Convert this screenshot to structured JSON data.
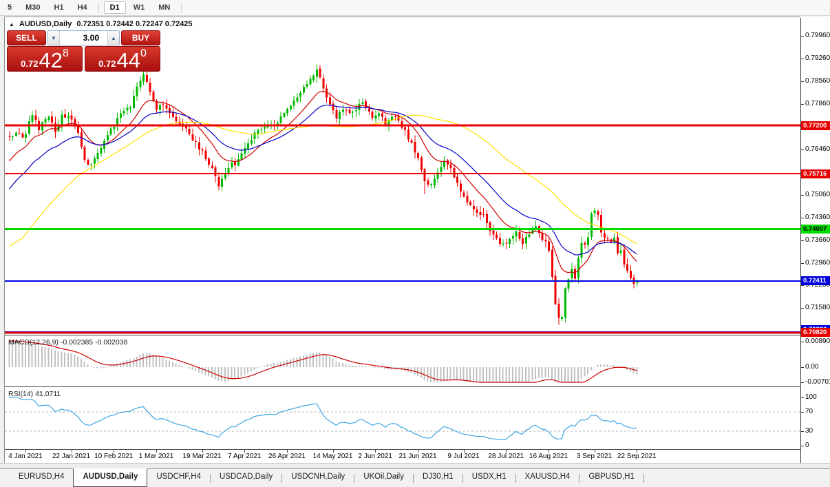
{
  "toolbar": {
    "items": [
      {
        "label": "5"
      },
      {
        "label": "M30"
      },
      {
        "label": "H1"
      },
      {
        "label": "H4"
      },
      {
        "sep": true
      },
      {
        "label": "D1",
        "active": true
      },
      {
        "label": "W1"
      },
      {
        "label": "MN"
      },
      {
        "sep": true
      }
    ]
  },
  "icons": {
    "panel_toggle": "▲",
    "triangle_up": "▲",
    "triangle_down": "▼"
  },
  "one_click": {
    "sell_label": "SELL",
    "buy_label": "BUY",
    "volume": "3.00",
    "sell": {
      "prefix": "0.72",
      "main": "42",
      "sup": "8"
    },
    "buy": {
      "prefix": "0.72",
      "main": "44",
      "sup": "0"
    }
  },
  "chart_data": {
    "type": "candlestick",
    "symbol": "AUDUSD",
    "timeframe": "Daily",
    "title": {
      "symbol": "AUDUSD,Daily",
      "ohlc": "0.72351 0.72442 0.72247 0.72425"
    },
    "last_bar": {
      "open": 0.72351,
      "high": 0.72442,
      "low": 0.72247,
      "close": 0.72425
    },
    "price_ticks": [
      "0.79960",
      "0.79260",
      "0.78560",
      "0.77860",
      "0.76460",
      "0.75060",
      "0.74360",
      "0.73660",
      "0.72960",
      "0.72280",
      "0.71580"
    ],
    "hlines": [
      {
        "value": 0.772,
        "label": "0.77200",
        "color": "#f00000",
        "w": 3,
        "badge_bg": "#e60000",
        "badge_fg": "#ffffff",
        "badge_dy": 0
      },
      {
        "value": 0.75716,
        "label": "0.75716",
        "color": "#f00000",
        "w": 2,
        "badge_bg": "#e60000",
        "badge_fg": "#ffffff",
        "badge_dy": 0
      },
      {
        "value": 0.74007,
        "label": "0.74007",
        "color": "#00d800",
        "w": 3,
        "badge_bg": "#00dc00",
        "badge_fg": "#000000",
        "badge_dy": 0
      },
      {
        "value": 0.72411,
        "label": "0.72411",
        "color": "#0000e8",
        "w": 2,
        "badge_bg": "#0000dc",
        "badge_fg": "#ffffff",
        "badge_dy": 0
      },
      {
        "value": 0.70836,
        "label": "0.70836",
        "color": "#0000e8",
        "w": 2,
        "badge_bg": "#0000dc",
        "badge_fg": "#ffffff",
        "badge_dy": -4
      },
      {
        "value": 0.7082,
        "label": "0.70820",
        "color": "#e00000",
        "w": 3,
        "badge_bg": "#e60000",
        "badge_fg": "#ffffff",
        "badge_dy": 0
      }
    ],
    "x_ticks": {
      "labels": [
        "4 Jan 2021",
        "22 Jan 2021",
        "10 Feb 2021",
        "1 Mar 2021",
        "19 Mar 2021",
        "7 Apr 2021",
        "26 Apr 2021",
        "14 May 2021",
        "2 Jun 2021",
        "21 Jun 2021",
        "9 Jul 2021",
        "28 Jul 2021",
        "16 Aug 2021",
        "3 Sep 2021",
        "22 Sep 2021"
      ],
      "day_index": [
        0,
        14,
        27,
        40,
        54,
        67,
        80,
        94,
        107,
        120,
        134,
        147,
        160,
        174,
        187
      ]
    },
    "indicators": {
      "macd": {
        "label": "MACD(12,26,9) -0.002385 -0.002038",
        "fast": 12,
        "slow": 26,
        "signal": 9,
        "value": -0.002385,
        "signal_value": -0.002038,
        "axis_values": [
          0.008904,
          0,
          -0.00701
        ],
        "axis_labels": [
          "0.008904",
          "0.00",
          "-0.00701"
        ],
        "bar_color": "#c0c0c0",
        "line_color": "#cc0000"
      },
      "rsi": {
        "label": "RSI(14) 41.0711",
        "period": 14,
        "value": 41.0711,
        "axis_values": [
          100,
          70,
          30,
          0
        ],
        "axis_labels": [
          "100",
          "70",
          "30",
          "0"
        ],
        "levels": [
          70,
          30
        ],
        "line_color": "#2e9fe6",
        "level_color": "#b4b4b4"
      }
    },
    "series": {
      "warmup": {
        "start": 0.7,
        "end": 0.768,
        "len": 50
      },
      "anchors": [
        [
          -5,
          0.7678
        ],
        [
          -3,
          0.7701
        ],
        [
          -1,
          0.7689
        ],
        [
          0,
          0.77
        ],
        [
          2,
          0.7758
        ],
        [
          4,
          0.7712
        ],
        [
          7,
          0.7752
        ],
        [
          9,
          0.7692
        ],
        [
          11,
          0.7756
        ],
        [
          14,
          0.7742
        ],
        [
          16,
          0.77
        ],
        [
          18,
          0.7612
        ],
        [
          20,
          0.7598
        ],
        [
          23,
          0.7648
        ],
        [
          26,
          0.7704
        ],
        [
          29,
          0.7758
        ],
        [
          32,
          0.778
        ],
        [
          34,
          0.7838
        ],
        [
          36,
          0.7872
        ],
        [
          38,
          0.783
        ],
        [
          40,
          0.7768
        ],
        [
          42,
          0.7784
        ],
        [
          45,
          0.7742
        ],
        [
          48,
          0.7722
        ],
        [
          51,
          0.7672
        ],
        [
          54,
          0.7642
        ],
        [
          57,
          0.7585
        ],
        [
          59,
          0.7535
        ],
        [
          62,
          0.7592
        ],
        [
          65,
          0.7612
        ],
        [
          67,
          0.765
        ],
        [
          70,
          0.7694
        ],
        [
          73,
          0.7712
        ],
        [
          76,
          0.7724
        ],
        [
          79,
          0.7752
        ],
        [
          82,
          0.779
        ],
        [
          85,
          0.7842
        ],
        [
          87,
          0.7862
        ],
        [
          89,
          0.7888
        ],
        [
          91,
          0.7838
        ],
        [
          93,
          0.7786
        ],
        [
          95,
          0.7744
        ],
        [
          97,
          0.777
        ],
        [
          100,
          0.7762
        ],
        [
          103,
          0.7788
        ],
        [
          106,
          0.7748
        ],
        [
          108,
          0.7754
        ],
        [
          110,
          0.7726
        ],
        [
          112,
          0.775
        ],
        [
          114,
          0.7738
        ],
        [
          116,
          0.77
        ],
        [
          118,
          0.7666
        ],
        [
          120,
          0.7618
        ],
        [
          122,
          0.7542
        ],
        [
          124,
          0.7534
        ],
        [
          126,
          0.758
        ],
        [
          128,
          0.7604
        ],
        [
          130,
          0.7586
        ],
        [
          132,
          0.754
        ],
        [
          134,
          0.7496
        ],
        [
          136,
          0.7476
        ],
        [
          138,
          0.7446
        ],
        [
          140,
          0.745
        ],
        [
          142,
          0.7388
        ],
        [
          144,
          0.7372
        ],
        [
          146,
          0.7352
        ],
        [
          148,
          0.737
        ],
        [
          150,
          0.7394
        ],
        [
          152,
          0.7362
        ],
        [
          154,
          0.739
        ],
        [
          156,
          0.7414
        ],
        [
          158,
          0.7372
        ],
        [
          160,
          0.734
        ],
        [
          161,
          0.7252
        ],
        [
          162,
          0.7168
        ],
        [
          163,
          0.7132
        ],
        [
          164,
          0.713
        ],
        [
          165,
          0.7222
        ],
        [
          166,
          0.7252
        ],
        [
          167,
          0.7274
        ],
        [
          168,
          0.7248
        ],
        [
          169,
          0.7312
        ],
        [
          170,
          0.7362
        ],
        [
          171,
          0.7352
        ],
        [
          172,
          0.7374
        ],
        [
          173,
          0.7442
        ],
        [
          174,
          0.7452
        ],
        [
          175,
          0.7438
        ],
        [
          176,
          0.7388
        ],
        [
          177,
          0.7368
        ],
        [
          178,
          0.7374
        ],
        [
          179,
          0.7356
        ],
        [
          180,
          0.7372
        ],
        [
          181,
          0.7322
        ],
        [
          182,
          0.7334
        ],
        [
          183,
          0.7298
        ],
        [
          184,
          0.7268
        ],
        [
          185,
          0.7252
        ],
        [
          186,
          0.7232
        ],
        [
          187,
          0.72425
        ]
      ],
      "overrides": {
        "36": {
          "h": 0.7912
        },
        "59": {
          "l": 0.752
        },
        "89": {
          "h": 0.7908
        },
        "122": {
          "l": 0.7508
        },
        "163": {
          "l": 0.7106
        },
        "187": {
          "o": 0.72351,
          "h": 0.72442,
          "l": 0.72247,
          "c": 0.72425
        }
      },
      "colors": {
        "up": "#00b800",
        "down": "#ee0000"
      },
      "ma": [
        {
          "period": 13,
          "type": "ema",
          "color": "#d00000"
        },
        {
          "period": 26,
          "type": "ema",
          "color": "#0000c8"
        },
        {
          "period": 55,
          "type": "sma",
          "color": "#ffdf00"
        }
      ]
    }
  },
  "tabs": {
    "items": [
      {
        "label": "EURUSD,H4"
      },
      {
        "label": "AUDUSD,Daily",
        "active": true
      },
      {
        "label": "USDCHF,H4"
      },
      {
        "label": "USDCAD,Daily"
      },
      {
        "label": "USDCNH,Daily"
      },
      {
        "label": "UKOil,Daily"
      },
      {
        "label": "DJ30,H1"
      },
      {
        "label": "USDX,H1"
      },
      {
        "label": "XAUUSD,H4"
      },
      {
        "label": "GBPUSD,H1"
      }
    ]
  }
}
